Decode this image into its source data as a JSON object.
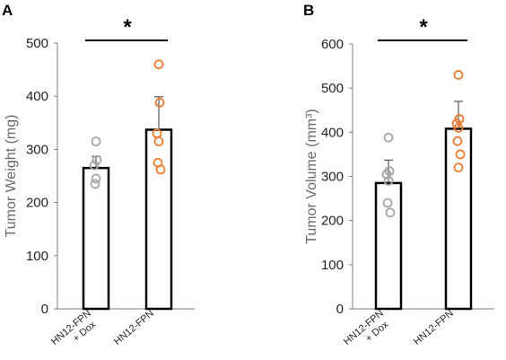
{
  "chart_data": [
    {
      "type": "bar",
      "panel": "A",
      "ylabel": "Tumor Weight (mg)",
      "ylim": [
        0,
        500
      ],
      "yticks": [
        0,
        100,
        200,
        300,
        400,
        500
      ],
      "categories": [
        [
          "HN12-FPN",
          "+ Dox"
        ],
        [
          "HN12-FPN"
        ]
      ],
      "values": [
        265,
        337
      ],
      "errors": [
        22,
        62
      ],
      "points": [
        [
          315,
          280,
          270,
          245,
          235
        ],
        [
          460,
          388,
          330,
          315,
          275,
          262
        ]
      ],
      "point_colors": [
        "#a6a6a6",
        "#ed7d31"
      ],
      "significance": "*"
    },
    {
      "type": "bar",
      "panel": "B",
      "ylabel": "Tumor Volume (mm³)",
      "ylim": [
        0,
        600
      ],
      "yticks": [
        0,
        100,
        200,
        300,
        400,
        500,
        600
      ],
      "categories": [
        [
          "HN12-FPN",
          "+ Dox"
        ],
        [
          "HN12-FPN"
        ]
      ],
      "values": [
        285,
        408
      ],
      "errors": [
        52,
        62
      ],
      "points": [
        [
          388,
          312,
          305,
          290,
          240,
          218
        ],
        [
          530,
          430,
          420,
          410,
          380,
          350,
          320
        ]
      ],
      "point_colors": [
        "#a6a6a6",
        "#ed7d31"
      ],
      "significance": "*"
    }
  ]
}
